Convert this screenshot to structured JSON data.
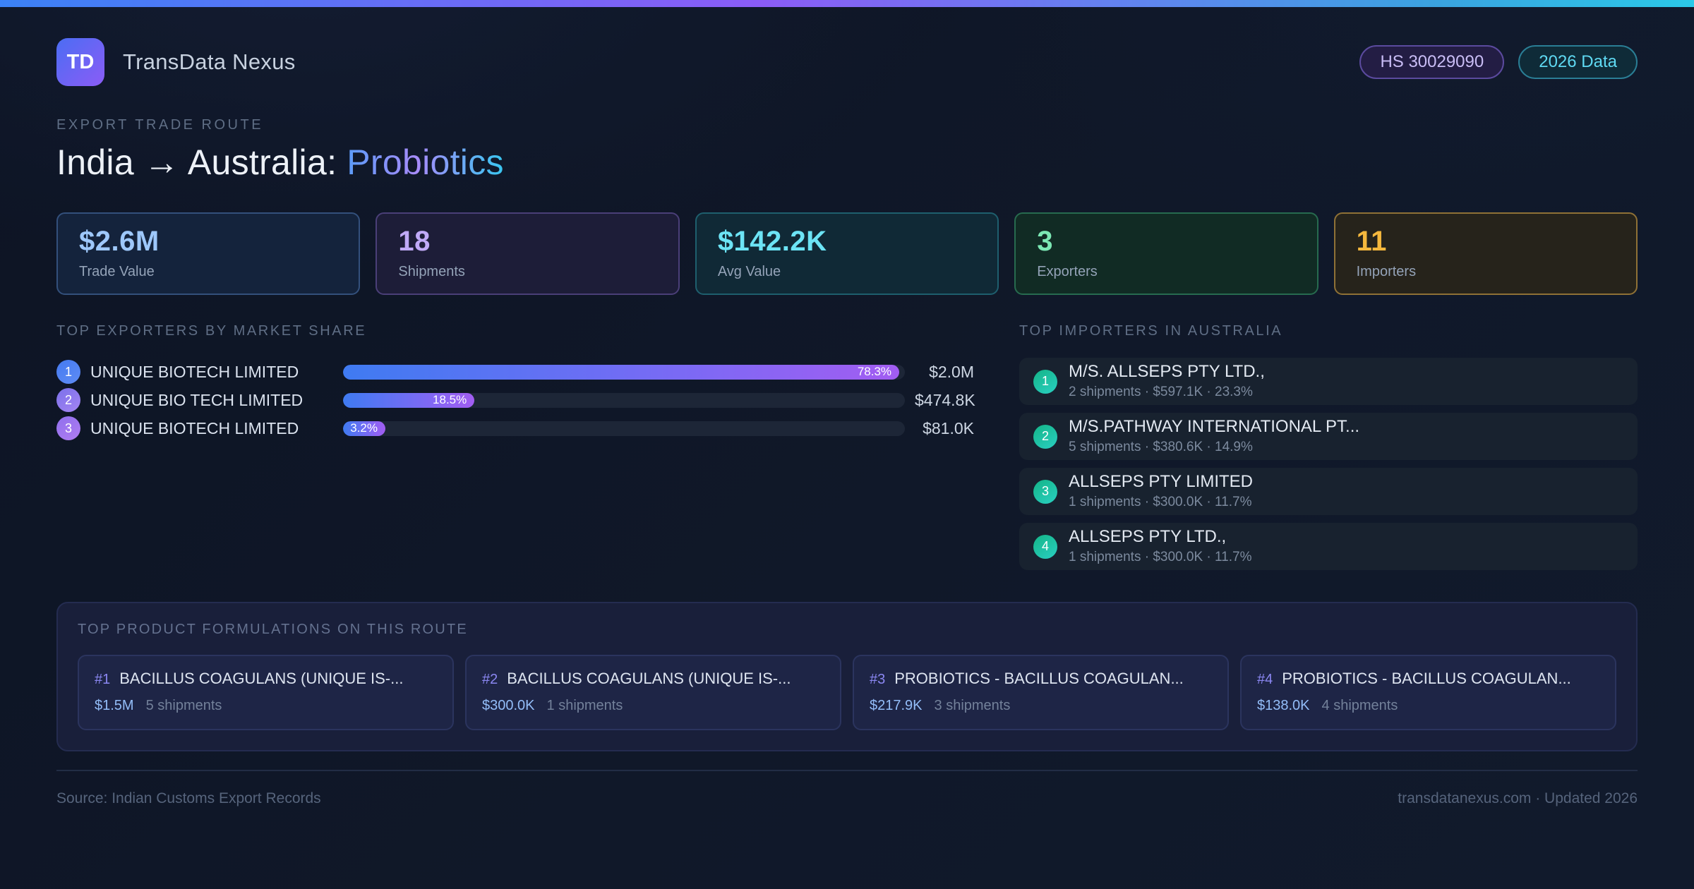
{
  "header": {
    "logo_text": "TD",
    "app_name": "TransData Nexus",
    "badge_hs": "HS 30029090",
    "badge_year": "2026 Data"
  },
  "hero": {
    "eyebrow": "EXPORT TRADE ROUTE",
    "title_prefix": "India → Australia:",
    "title_highlight": "Probiotics"
  },
  "stats": [
    {
      "value": "$2.6M",
      "label": "Trade Value"
    },
    {
      "value": "18",
      "label": "Shipments"
    },
    {
      "value": "$142.2K",
      "label": "Avg Value"
    },
    {
      "value": "3",
      "label": "Exporters"
    },
    {
      "value": "11",
      "label": "Importers"
    }
  ],
  "exporters": {
    "title": "TOP EXPORTERS BY MARKET SHARE",
    "rows": [
      {
        "rank": "1",
        "name": "UNIQUE BIOTECH LIMITED",
        "share_pct": 78.3,
        "share_label": "78.3%",
        "value": "$2.0M"
      },
      {
        "rank": "2",
        "name": "UNIQUE BIO TECH LIMITED",
        "share_pct": 18.5,
        "share_label": "18.5%",
        "value": "$474.8K"
      },
      {
        "rank": "3",
        "name": "UNIQUE BIOTECH LIMITED",
        "share_pct": 3.2,
        "share_label": "3.2%",
        "value": "$81.0K"
      }
    ]
  },
  "importers": {
    "title": "TOP IMPORTERS IN AUSTRALIA",
    "rows": [
      {
        "rank": "1",
        "name": "M/S. ALLSEPS PTY LTD.,",
        "meta": "2 shipments · $597.1K · 23.3%"
      },
      {
        "rank": "2",
        "name": "M/S.PATHWAY  INTERNATIONAL PT...",
        "meta": "5 shipments · $380.6K · 14.9%"
      },
      {
        "rank": "3",
        "name": "ALLSEPS PTY LIMITED",
        "meta": "1 shipments · $300.0K · 11.7%"
      },
      {
        "rank": "4",
        "name": "ALLSEPS PTY LTD.,",
        "meta": "1 shipments · $300.0K · 11.7%"
      }
    ]
  },
  "formulations": {
    "title": "TOP PRODUCT FORMULATIONS ON THIS ROUTE",
    "cards": [
      {
        "rank": "#1",
        "name": "BACILLUS COAGULANS (UNIQUE IS-...",
        "value": "$1.5M",
        "shipments": "5 shipments"
      },
      {
        "rank": "#2",
        "name": "BACILLUS COAGULANS (UNIQUE IS-...",
        "value": "$300.0K",
        "shipments": "1 shipments"
      },
      {
        "rank": "#3",
        "name": "PROBIOTICS - BACILLUS COAGULAN...",
        "value": "$217.9K",
        "shipments": "3 shipments"
      },
      {
        "rank": "#4",
        "name": "PROBIOTICS - BACILLUS COAGULAN...",
        "value": "$138.0K",
        "shipments": "4 shipments"
      }
    ]
  },
  "footer": {
    "source": "Source: Indian Customs Export Records",
    "site": "transdatanexus.com · Updated 2026"
  },
  "colors": {
    "accent_blue": "#3b82f6",
    "accent_purple": "#8b5cf6",
    "accent_cyan": "#22d3ee",
    "accent_green": "#10b981",
    "accent_amber": "#f5b83d",
    "page_bg": "#101829"
  }
}
